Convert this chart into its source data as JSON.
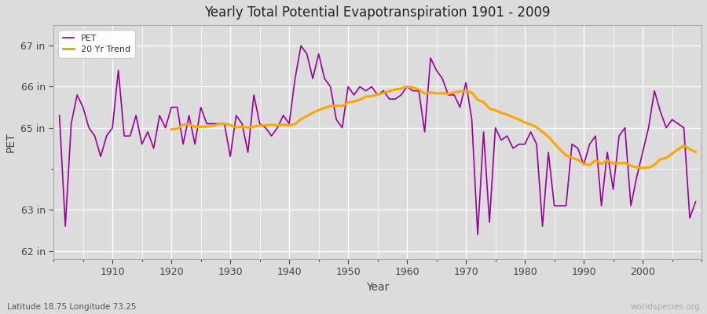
{
  "title": "Yearly Total Potential Evapotranspiration 1901 - 2009",
  "xlabel": "Year",
  "ylabel": "PET",
  "subtitle": "Latitude 18.75 Longitude 73.25",
  "watermark": "worldspecies.org",
  "pet_color": "#990099",
  "trend_color": "#FFA500",
  "bg_color": "#DCDCDC",
  "grid_color": "#FFFFFF",
  "years": [
    1901,
    1902,
    1903,
    1904,
    1905,
    1906,
    1907,
    1908,
    1909,
    1910,
    1911,
    1912,
    1913,
    1914,
    1915,
    1916,
    1917,
    1918,
    1919,
    1920,
    1921,
    1922,
    1923,
    1924,
    1925,
    1926,
    1927,
    1928,
    1929,
    1930,
    1931,
    1932,
    1933,
    1934,
    1935,
    1936,
    1937,
    1938,
    1939,
    1940,
    1941,
    1942,
    1943,
    1944,
    1945,
    1946,
    1947,
    1948,
    1949,
    1950,
    1951,
    1952,
    1953,
    1954,
    1955,
    1956,
    1957,
    1958,
    1959,
    1960,
    1961,
    1962,
    1963,
    1964,
    1965,
    1966,
    1967,
    1968,
    1969,
    1970,
    1971,
    1972,
    1973,
    1974,
    1975,
    1976,
    1977,
    1978,
    1979,
    1980,
    1981,
    1982,
    1983,
    1984,
    1985,
    1986,
    1987,
    1988,
    1989,
    1990,
    1991,
    1992,
    1993,
    1994,
    1995,
    1996,
    1997,
    1998,
    1999,
    2000,
    2001,
    2002,
    2003,
    2004,
    2005,
    2006,
    2007,
    2008,
    2009
  ],
  "pet_values": [
    65.3,
    62.6,
    65.1,
    65.8,
    65.5,
    65.0,
    64.8,
    64.3,
    64.8,
    65.0,
    66.4,
    64.8,
    64.8,
    65.3,
    64.6,
    64.9,
    64.5,
    65.3,
    65.0,
    65.5,
    65.5,
    64.6,
    65.3,
    64.6,
    65.5,
    65.1,
    65.1,
    65.1,
    65.1,
    64.3,
    65.3,
    65.1,
    64.4,
    65.8,
    65.1,
    65.0,
    64.8,
    65.0,
    65.3,
    65.1,
    66.2,
    67.0,
    66.8,
    66.2,
    66.8,
    66.2,
    66.0,
    65.2,
    65.0,
    66.0,
    65.8,
    66.0,
    65.9,
    66.0,
    65.8,
    65.9,
    65.7,
    65.7,
    65.8,
    66.0,
    65.9,
    65.9,
    64.9,
    66.7,
    66.4,
    66.2,
    65.8,
    65.8,
    65.5,
    66.1,
    65.2,
    62.4,
    64.9,
    62.7,
    65.0,
    64.7,
    64.8,
    64.5,
    64.6,
    64.6,
    64.9,
    64.6,
    62.6,
    64.4,
    63.1,
    63.1,
    63.1,
    64.6,
    64.5,
    64.1,
    64.6,
    64.8,
    63.1,
    64.4,
    63.5,
    64.8,
    65.0,
    63.1,
    63.8,
    64.4,
    65.0,
    65.9,
    65.4,
    65.0,
    65.2,
    65.1,
    65.0,
    62.8,
    63.2
  ],
  "yticks": [
    62,
    63,
    65,
    66,
    67
  ],
  "ytick_labels": [
    "62 in",
    "63 in",
    "65 in",
    "66 in",
    "67 in"
  ],
  "ylim": [
    61.8,
    67.5
  ],
  "xlim": [
    1900,
    2010
  ],
  "xticks": [
    1910,
    1920,
    1930,
    1940,
    1950,
    1960,
    1970,
    1980,
    1990,
    2000
  ],
  "figsize": [
    9.0,
    4.0
  ],
  "dpi": 100
}
